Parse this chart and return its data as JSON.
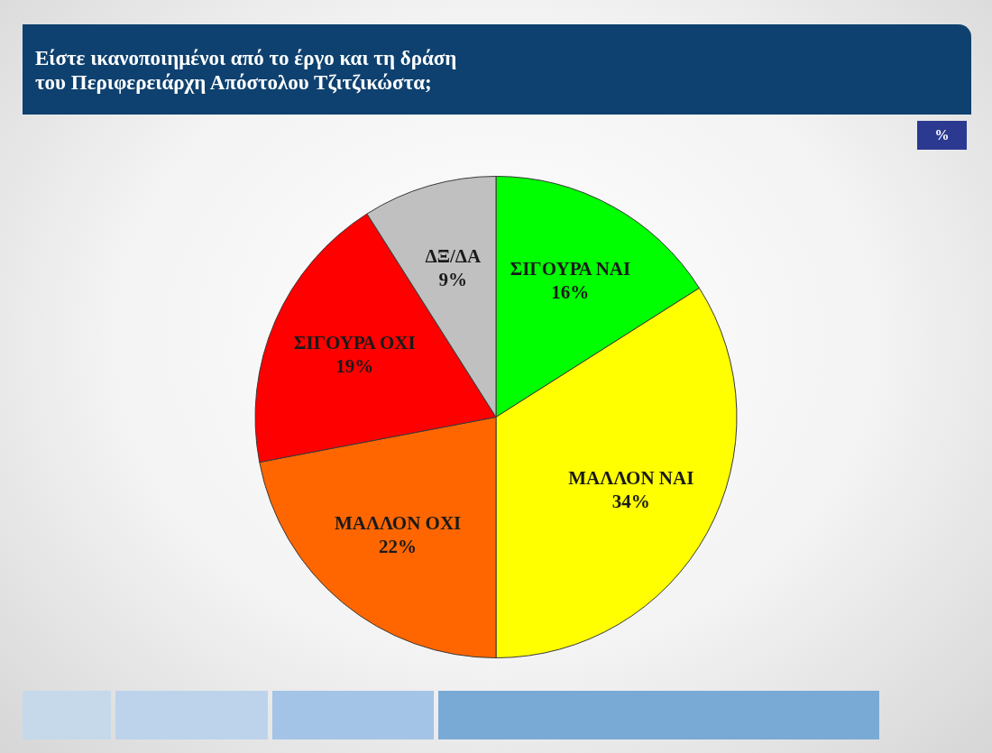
{
  "chart_data": {
    "type": "pie",
    "title": "Είστε ικανοποιημένοι από το έργο και τη δράση\nτου Περιφερειάρχη Απόστολου Τζιτζικώστα;",
    "annotations": [
      "%"
    ],
    "categories": [
      "ΣΙΓΟΥΡΑ ΝΑΙ",
      "ΜΑΛΛΟΝ ΝΑΙ",
      "ΜΑΛΛΟΝ ΟΧΙ",
      "ΣΙΓΟΥΡΑ ΟΧΙ",
      "ΔΞ/ΔΑ"
    ],
    "values": [
      16,
      34,
      22,
      19,
      9
    ],
    "colors": [
      "#00ff00",
      "#ffff00",
      "#ff6600",
      "#ff0000",
      "#c0c0c0"
    ],
    "value_labels": [
      "16%",
      "34%",
      "22%",
      "19%",
      "9%"
    ]
  }
}
